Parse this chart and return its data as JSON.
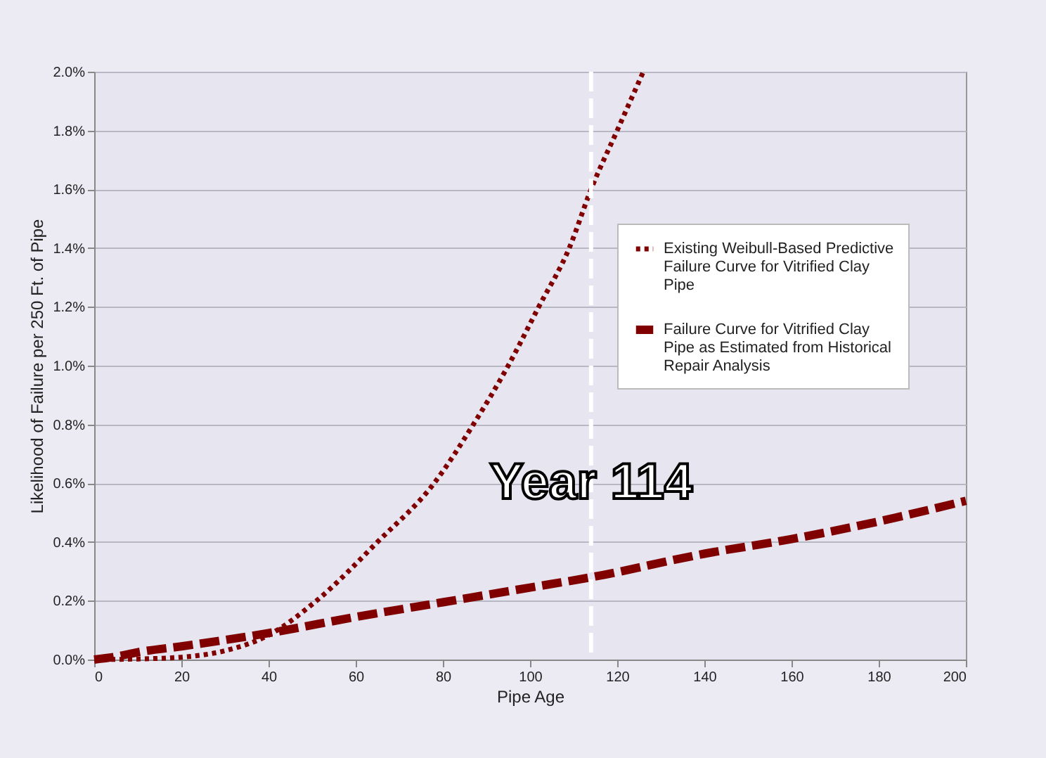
{
  "chart_data": {
    "type": "line",
    "xlabel": "Pipe Age",
    "ylabel": "Likelihood of Failure per 250 Ft. of Pipe",
    "xlim": [
      0,
      200
    ],
    "xticks": [
      0,
      20,
      40,
      60,
      80,
      100,
      120,
      140,
      160,
      180,
      200
    ],
    "ylim": [
      0,
      2
    ],
    "yticks": [
      {
        "value": 0,
        "label": "0.0%"
      },
      {
        "value": 0.2,
        "label": "0.2%"
      },
      {
        "value": 0.4,
        "label": "0.4%"
      },
      {
        "value": 0.6,
        "label": "0.6%"
      },
      {
        "value": 0.8,
        "label": "0.8%"
      },
      {
        "value": 1,
        "label": "1.0%"
      },
      {
        "value": 1.2,
        "label": "1.2%"
      },
      {
        "value": 1.4,
        "label": "1.4%"
      },
      {
        "value": 1.6,
        "label": "1.6%"
      },
      {
        "value": 1.8,
        "label": "1.8%"
      },
      {
        "value": 2,
        "label": "2.0%"
      }
    ],
    "grid": "y",
    "legend": "right",
    "series": [
      {
        "name": "Existing Weibull-Based Predictive Failure Curve for Vitrified Clay Pipe",
        "color": "#800000",
        "line_style": "dotted",
        "x": [
          0,
          10,
          20,
          30,
          40,
          51,
          65,
          78,
          87,
          95,
          102,
          109,
          114,
          120,
          126
        ],
        "values": [
          0,
          0.002,
          0.008,
          0.03,
          0.083,
          0.2,
          0.4,
          0.6,
          0.8,
          1,
          1.2,
          1.4,
          1.6,
          1.8,
          2
        ]
      },
      {
        "name": "Failure Curve for Vitrified Clay Pipe as Estimated from Historical Repair Analysis",
        "color": "#800000",
        "line_style": "dashed",
        "x": [
          0,
          5,
          10,
          20,
          40,
          60,
          80,
          100,
          114,
          140,
          160,
          180,
          200
        ],
        "values": [
          0,
          0.01,
          0.025,
          0.045,
          0.09,
          0.145,
          0.195,
          0.245,
          0.28,
          0.36,
          0.41,
          0.47,
          0.54
        ]
      }
    ],
    "ref_lines": [
      {
        "axis": "x",
        "value": 114,
        "label": "Year 114",
        "color": "#ffffff",
        "line_style": "dashed"
      }
    ]
  }
}
